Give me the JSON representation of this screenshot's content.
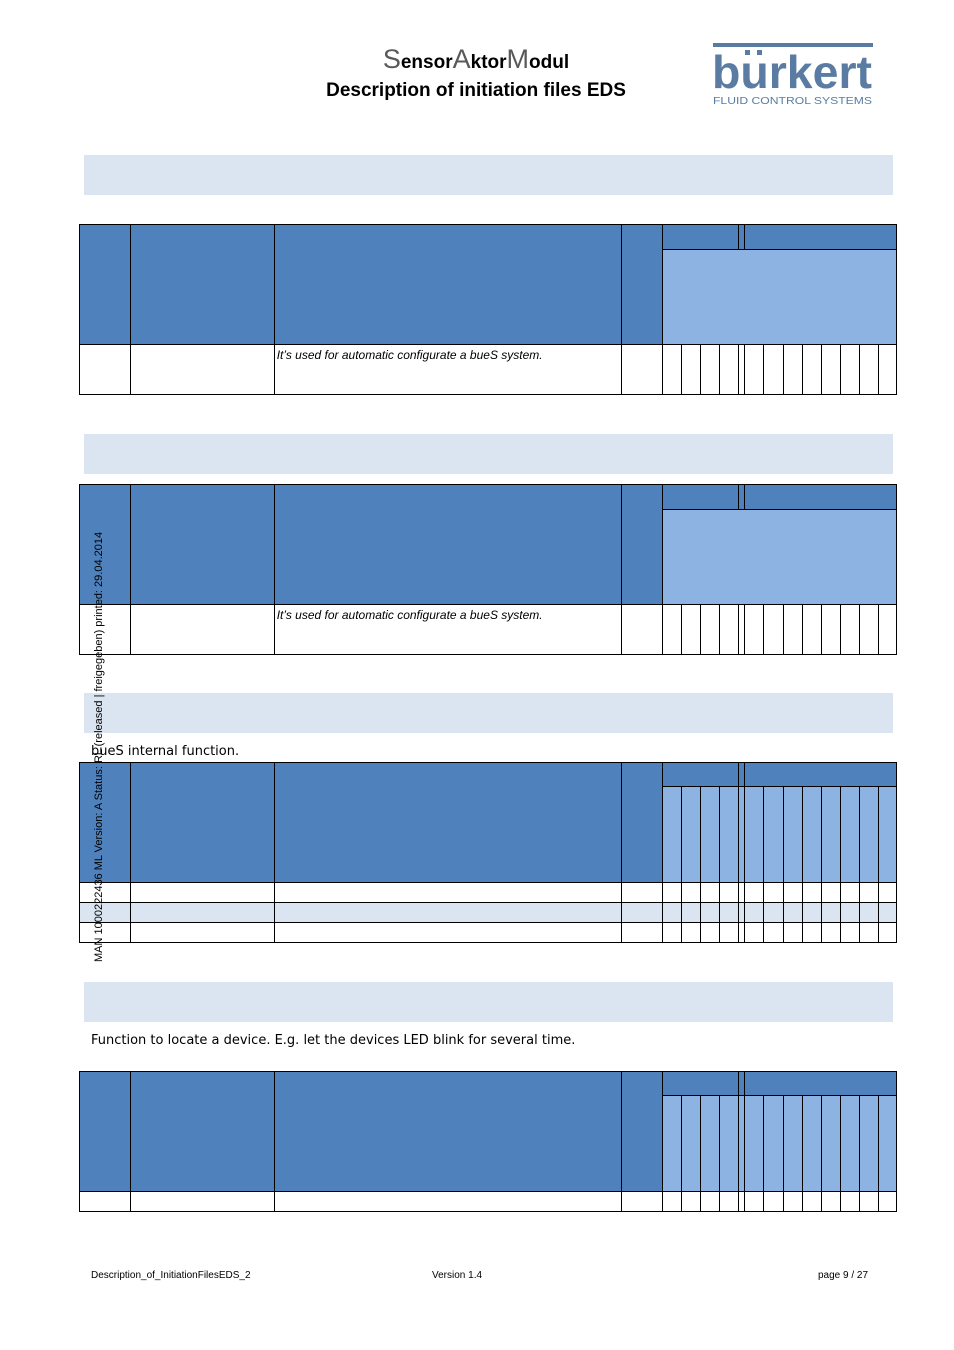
{
  "header": {
    "title_parts": [
      {
        "cap": "S",
        "rest": "ensor"
      },
      {
        "cap": "A",
        "rest": "ktor"
      },
      {
        "cap": "M",
        "rest": "odul"
      }
    ],
    "subtitle": "Description of initiation files EDS",
    "logo": {
      "brand": "burkert",
      "tagline": "FLUID CONTROL SYSTEMS",
      "color": "#5a7ca3"
    }
  },
  "sections": [
    {
      "table": {
        "row_text": "It’s used for automatic configurate a bueS system."
      }
    },
    {
      "table": {
        "row_text": "It’s used for automatic configurate a bueS system."
      }
    },
    {
      "description": "bueS internal function."
    },
    {
      "description": "Function to locate a device. E.g. let the devices LED blink for several time."
    }
  ],
  "side_text": "MAN 1000222436  ML  Version: A  Status: RL (released | freigegeben)  printed: 29.04.2014",
  "footer": {
    "left": "Description_of_InitiationFilesEDS_2",
    "center": "Version 1.4",
    "right": "page 9 / 27"
  },
  "colors": {
    "header_dark": "#4f81bd",
    "header_light": "#8db3e2",
    "band": "#dbe5f1"
  }
}
